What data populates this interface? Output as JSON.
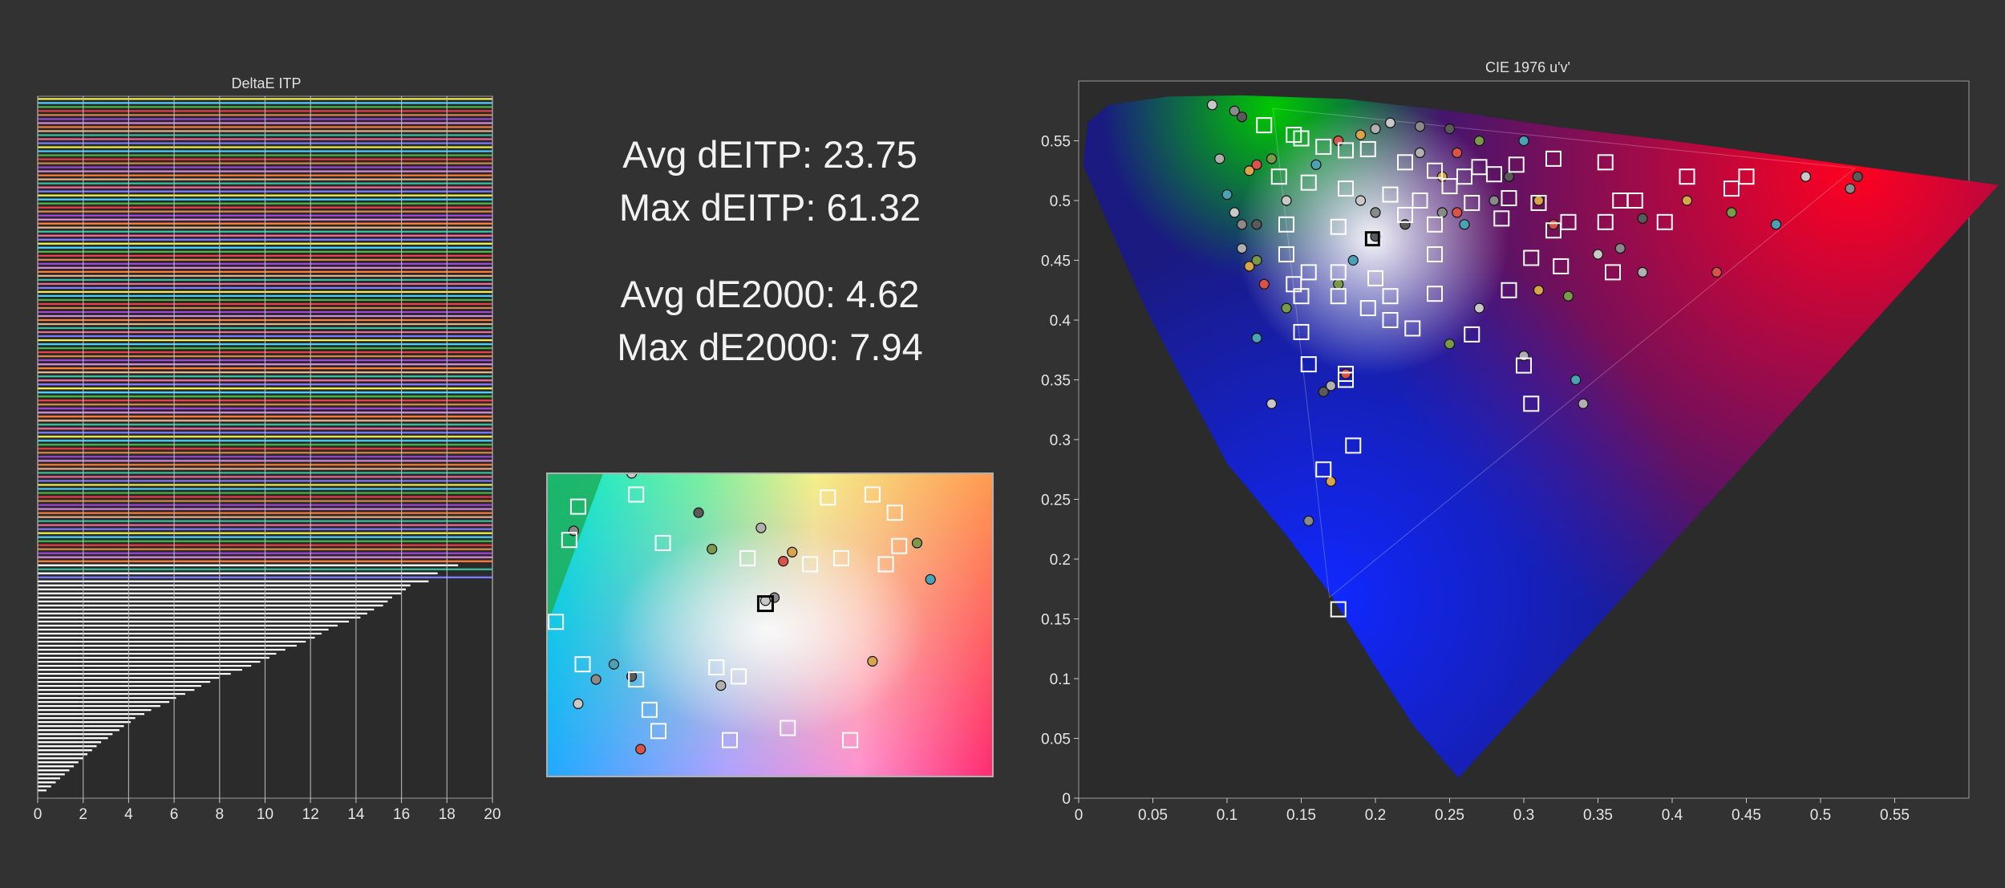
{
  "colors": {
    "background": "#323232",
    "plot_bg": "#2b2b2b",
    "grid": "#bfbfbf",
    "bar_fill": "#ffffff",
    "palette": [
      "#f2ef4d",
      "#4dd2ff",
      "#4cb84c",
      "#e8424a",
      "#d98a4a",
      "#a04ad9",
      "#d98ad9",
      "#ff7f3f",
      "#e8b08c",
      "#3fbfa0",
      "#f06d9a",
      "#7f7fff"
    ]
  },
  "stats": {
    "avg_deitp": "Avg dEITP: 23.75",
    "max_deitp": "Max dEITP: 61.32",
    "avg_de2000": "Avg dE2000: 4.62",
    "max_de2000": "Max dE2000: 7.94"
  },
  "chart_data": [
    {
      "type": "bar",
      "orientation": "horizontal",
      "title": "DeltaE ITP",
      "xlim": [
        0,
        20
      ],
      "xticks": [
        "0",
        "2",
        "4",
        "6",
        "8",
        "10",
        "12",
        "14",
        "16",
        "18",
        "20"
      ],
      "grid": true,
      "values": [
        20,
        20,
        20,
        20,
        20,
        20,
        20,
        20,
        20,
        20,
        20,
        20,
        20,
        20,
        20,
        20,
        20,
        20,
        20,
        20,
        20,
        20,
        20,
        20,
        20,
        20,
        20,
        20,
        20,
        20,
        20,
        20,
        20,
        20,
        20,
        20,
        20,
        20,
        20,
        20,
        20,
        20,
        20,
        20,
        20,
        20,
        20,
        20,
        20,
        20,
        20,
        20,
        20,
        20,
        20,
        20,
        20,
        20,
        20,
        20,
        20,
        20,
        20,
        20,
        20,
        20,
        20,
        20,
        20,
        20,
        20,
        20,
        20,
        20,
        20,
        20,
        20,
        20,
        20,
        20,
        20,
        20,
        20,
        20,
        20,
        20,
        20,
        20,
        20,
        20,
        20,
        20,
        20,
        20,
        20,
        20,
        20,
        20,
        20,
        20,
        20,
        20,
        20,
        20,
        20,
        20,
        20,
        20,
        20,
        20,
        20,
        20,
        20,
        20,
        20,
        20,
        18.5,
        20,
        17.6,
        20,
        17.2,
        16.4,
        16.2,
        16,
        15.6,
        15.4,
        15.2,
        14.8,
        14.5,
        14.2,
        13.7,
        13.2,
        12.8,
        12.5,
        12.2,
        11.8,
        11.4,
        10.9,
        10.5,
        10.2,
        9.8,
        9.4,
        9.0,
        8.5,
        8.0,
        7.6,
        7.2,
        6.9,
        6.5,
        6.1,
        5.8,
        5.4,
        5.0,
        4.7,
        4.3,
        4.1,
        3.8,
        3.6,
        3.3,
        3.1,
        2.8,
        2.6,
        2.4,
        2.2,
        2.0,
        1.8,
        1.6,
        1.4,
        1.2,
        1.0,
        0.8,
        0.6,
        0.4
      ]
    },
    {
      "type": "scatter",
      "title": "CIE 1976 u'v'",
      "xlim": [
        0,
        0.6
      ],
      "ylim": [
        0,
        0.6
      ],
      "xticks": [
        "0",
        "0.05",
        "0.1",
        "0.15",
        "0.2",
        "0.25",
        "0.3",
        "0.35",
        "0.4",
        "0.45",
        "0.5",
        "0.55"
      ],
      "yticks": [
        "0",
        "0.05",
        "0.1",
        "0.15",
        "0.2",
        "0.25",
        "0.3",
        "0.35",
        "0.4",
        "0.45",
        "0.5",
        "0.55"
      ],
      "gamut_primaries": {
        "red": [
          0.523,
          0.527
        ],
        "green": [
          0.131,
          0.577
        ],
        "blue": [
          0.169,
          0.168
        ],
        "white": [
          0.198,
          0.468
        ]
      },
      "targets": [
        [
          0.125,
          0.563
        ],
        [
          0.145,
          0.555
        ],
        [
          0.15,
          0.552
        ],
        [
          0.165,
          0.545
        ],
        [
          0.18,
          0.542
        ],
        [
          0.195,
          0.543
        ],
        [
          0.22,
          0.532
        ],
        [
          0.24,
          0.525
        ],
        [
          0.26,
          0.52
        ],
        [
          0.27,
          0.528
        ],
        [
          0.28,
          0.522
        ],
        [
          0.295,
          0.53
        ],
        [
          0.32,
          0.535
        ],
        [
          0.355,
          0.532
        ],
        [
          0.41,
          0.52
        ],
        [
          0.44,
          0.51
        ],
        [
          0.45,
          0.52
        ],
        [
          0.135,
          0.52
        ],
        [
          0.155,
          0.515
        ],
        [
          0.18,
          0.51
        ],
        [
          0.21,
          0.505
        ],
        [
          0.23,
          0.5
        ],
        [
          0.25,
          0.512
        ],
        [
          0.265,
          0.498
        ],
        [
          0.29,
          0.502
        ],
        [
          0.31,
          0.498
        ],
        [
          0.33,
          0.482
        ],
        [
          0.365,
          0.5
        ],
        [
          0.375,
          0.5
        ],
        [
          0.395,
          0.482
        ],
        [
          0.355,
          0.482
        ],
        [
          0.14,
          0.48
        ],
        [
          0.175,
          0.478
        ],
        [
          0.22,
          0.488
        ],
        [
          0.24,
          0.48
        ],
        [
          0.285,
          0.485
        ],
        [
          0.32,
          0.475
        ],
        [
          0.14,
          0.455
        ],
        [
          0.155,
          0.44
        ],
        [
          0.175,
          0.44
        ],
        [
          0.145,
          0.43
        ],
        [
          0.15,
          0.42
        ],
        [
          0.175,
          0.42
        ],
        [
          0.2,
          0.435
        ],
        [
          0.24,
          0.455
        ],
        [
          0.305,
          0.452
        ],
        [
          0.325,
          0.445
        ],
        [
          0.36,
          0.44
        ],
        [
          0.21,
          0.42
        ],
        [
          0.24,
          0.422
        ],
        [
          0.29,
          0.425
        ],
        [
          0.195,
          0.41
        ],
        [
          0.21,
          0.4
        ],
        [
          0.225,
          0.393
        ],
        [
          0.265,
          0.388
        ],
        [
          0.15,
          0.39
        ],
        [
          0.155,
          0.363
        ],
        [
          0.18,
          0.355
        ],
        [
          0.18,
          0.35
        ],
        [
          0.3,
          0.362
        ],
        [
          0.305,
          0.33
        ],
        [
          0.185,
          0.295
        ],
        [
          0.165,
          0.275
        ],
        [
          0.175,
          0.158
        ],
        [
          0.198,
          0.468
        ]
      ],
      "measured": [
        [
          0.09,
          0.58
        ],
        [
          0.105,
          0.575
        ],
        [
          0.11,
          0.57
        ],
        [
          0.095,
          0.535
        ],
        [
          0.115,
          0.525
        ],
        [
          0.12,
          0.53
        ],
        [
          0.13,
          0.535
        ],
        [
          0.1,
          0.505
        ],
        [
          0.105,
          0.49
        ],
        [
          0.11,
          0.48
        ],
        [
          0.12,
          0.48
        ],
        [
          0.11,
          0.46
        ],
        [
          0.115,
          0.445
        ],
        [
          0.125,
          0.43
        ],
        [
          0.14,
          0.41
        ],
        [
          0.12,
          0.385
        ],
        [
          0.13,
          0.33
        ],
        [
          0.155,
          0.232
        ],
        [
          0.165,
          0.34
        ],
        [
          0.17,
          0.345
        ],
        [
          0.17,
          0.265
        ],
        [
          0.18,
          0.355
        ],
        [
          0.175,
          0.43
        ],
        [
          0.185,
          0.45
        ],
        [
          0.19,
          0.5
        ],
        [
          0.2,
          0.49
        ],
        [
          0.22,
          0.48
        ],
        [
          0.23,
          0.54
        ],
        [
          0.245,
          0.52
        ],
        [
          0.255,
          0.49
        ],
        [
          0.25,
          0.38
        ],
        [
          0.26,
          0.48
        ],
        [
          0.27,
          0.41
        ],
        [
          0.28,
          0.5
        ],
        [
          0.29,
          0.52
        ],
        [
          0.3,
          0.37
        ],
        [
          0.31,
          0.5
        ],
        [
          0.32,
          0.48
        ],
        [
          0.33,
          0.42
        ],
        [
          0.335,
          0.35
        ],
        [
          0.35,
          0.455
        ],
        [
          0.365,
          0.46
        ],
        [
          0.38,
          0.485
        ],
        [
          0.38,
          0.44
        ],
        [
          0.41,
          0.5
        ],
        [
          0.43,
          0.44
        ],
        [
          0.44,
          0.49
        ],
        [
          0.47,
          0.48
        ],
        [
          0.49,
          0.52
        ],
        [
          0.52,
          0.51
        ],
        [
          0.525,
          0.52
        ],
        [
          0.34,
          0.33
        ],
        [
          0.31,
          0.425
        ],
        [
          0.255,
          0.54
        ],
        [
          0.27,
          0.55
        ],
        [
          0.3,
          0.55
        ],
        [
          0.21,
          0.565
        ],
        [
          0.23,
          0.562
        ],
        [
          0.25,
          0.56
        ],
        [
          0.2,
          0.56
        ],
        [
          0.19,
          0.555
        ],
        [
          0.175,
          0.55
        ],
        [
          0.12,
          0.45
        ],
        [
          0.16,
          0.53
        ],
        [
          0.14,
          0.5
        ],
        [
          0.245,
          0.49
        ],
        [
          0.2,
          0.47
        ]
      ]
    },
    {
      "type": "scatter",
      "title": "",
      "xlim": [
        0.16,
        0.26
      ],
      "ylim": [
        0.42,
        0.52
      ],
      "targets": [
        [
          0.167,
          0.509
        ],
        [
          0.165,
          0.498
        ],
        [
          0.186,
          0.497
        ],
        [
          0.18,
          0.513
        ],
        [
          0.223,
          0.512
        ],
        [
          0.233,
          0.513
        ],
        [
          0.238,
          0.507
        ],
        [
          0.239,
          0.496
        ],
        [
          0.226,
          0.492
        ],
        [
          0.205,
          0.492
        ],
        [
          0.219,
          0.49
        ],
        [
          0.236,
          0.49
        ],
        [
          0.162,
          0.471
        ],
        [
          0.168,
          0.457
        ],
        [
          0.18,
          0.452
        ],
        [
          0.203,
          0.453
        ],
        [
          0.198,
          0.456
        ],
        [
          0.183,
          0.442
        ],
        [
          0.185,
          0.435
        ],
        [
          0.214,
          0.436
        ],
        [
          0.201,
          0.432
        ],
        [
          0.228,
          0.432
        ],
        [
          0.209,
          0.477
        ]
      ],
      "measured": [
        [
          0.179,
          0.52
        ],
        [
          0.166,
          0.501
        ],
        [
          0.194,
          0.507
        ],
        [
          0.208,
          0.502
        ],
        [
          0.215,
          0.494
        ],
        [
          0.213,
          0.491
        ],
        [
          0.197,
          0.495
        ],
        [
          0.175,
          0.457
        ],
        [
          0.167,
          0.444
        ],
        [
          0.171,
          0.452
        ],
        [
          0.179,
          0.453
        ],
        [
          0.199,
          0.45
        ],
        [
          0.233,
          0.458
        ],
        [
          0.181,
          0.429
        ],
        [
          0.243,
          0.497
        ],
        [
          0.246,
          0.485
        ],
        [
          0.209,
          0.478
        ],
        [
          0.211,
          0.479
        ]
      ]
    }
  ]
}
